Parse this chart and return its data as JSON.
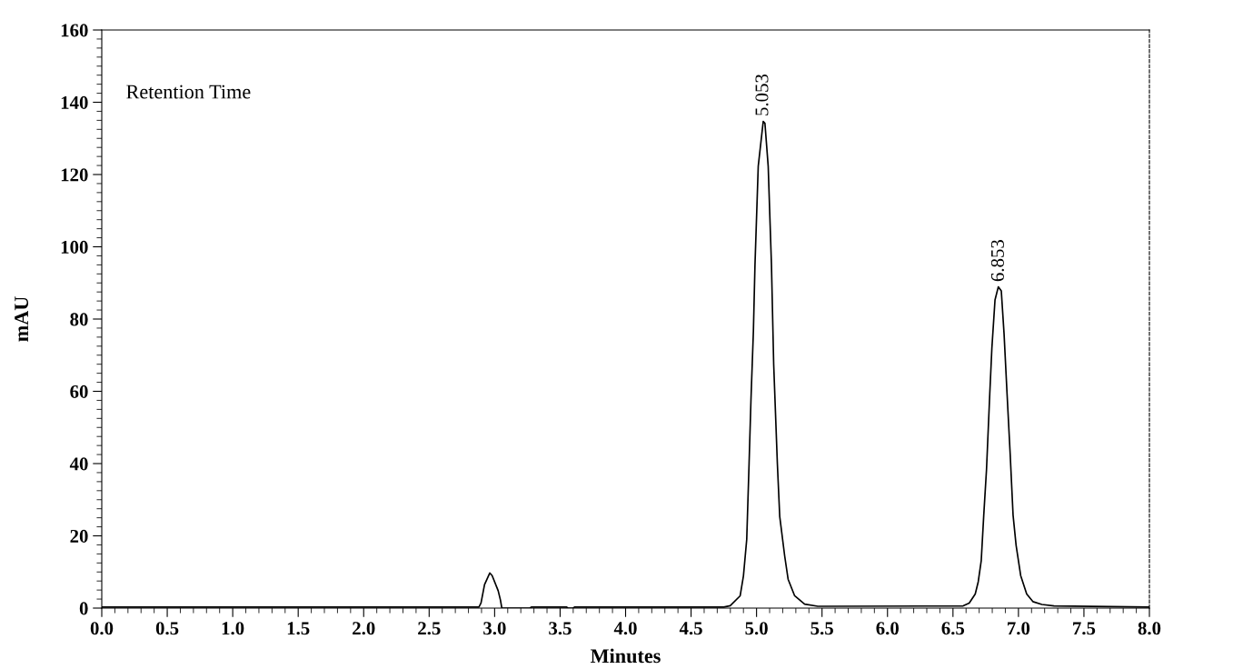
{
  "chart_data": {
    "type": "line",
    "xlabel": "Minutes",
    "ylabel": "mAU",
    "annotations": [
      "Retention Time",
      {
        "text": "5.053",
        "x": 5.053,
        "y": 134.7
      },
      {
        "text": "6.853",
        "x": 6.853,
        "y": 88.9
      }
    ],
    "series": [
      {
        "color": "#000000",
        "x": [
          0.0,
          2.88,
          2.896,
          2.923,
          2.963,
          2.981,
          3.027,
          3.044,
          3.055,
          3.27,
          3.28,
          3.55,
          3.56,
          3.6,
          3.61,
          4.75,
          4.799,
          4.875,
          4.9,
          4.925,
          4.943,
          4.958,
          4.976,
          4.988,
          5.013,
          5.051,
          5.064,
          5.089,
          5.114,
          5.131,
          5.159,
          5.177,
          5.215,
          5.241,
          5.291,
          5.367,
          5.468,
          6.578,
          6.624,
          6.67,
          6.693,
          6.716,
          6.735,
          6.756,
          6.781,
          6.797,
          6.821,
          6.846,
          6.869,
          6.89,
          6.913,
          6.937,
          6.959,
          6.982,
          7.017,
          7.063,
          7.11,
          7.179,
          7.272,
          8.0
        ],
        "values": [
          0.3,
          0.3,
          1.4,
          6.5,
          9.7,
          9.0,
          4.8,
          2.3,
          0.0,
          0.0,
          0.3,
          0.3,
          0.0,
          0.0,
          0.3,
          0.3,
          0.65,
          3.4,
          8.9,
          19,
          40,
          58.3,
          76.6,
          94.9,
          122.3,
          134.7,
          134.2,
          122.3,
          94.9,
          67.4,
          40,
          25.4,
          14.4,
          8,
          3.4,
          1.1,
          0.5,
          0.6,
          1.4,
          3.9,
          7.3,
          13.2,
          25.7,
          38.3,
          59.3,
          71.9,
          85.3,
          88.9,
          87.8,
          76,
          59.3,
          42.5,
          25.7,
          17.4,
          9,
          3.9,
          1.8,
          1,
          0.6,
          0.3
        ]
      }
    ],
    "xlim": [
      0,
      8
    ],
    "xticks": [
      {
        "value": 0,
        "label": "0.0"
      },
      0.5,
      {
        "value": 1,
        "label": "1.0"
      },
      1.5,
      {
        "value": 2,
        "label": "2.0"
      },
      2.5,
      {
        "value": 3,
        "label": "3.0"
      },
      3.5,
      {
        "value": 4,
        "label": "4.0"
      },
      4.5,
      {
        "value": 5,
        "label": "5.0"
      },
      5.5,
      {
        "value": 6,
        "label": "6.0"
      },
      6.5,
      {
        "value": 7,
        "label": "7.0"
      },
      7.5,
      {
        "value": 8,
        "label": "8.0"
      }
    ],
    "ylim": [
      0,
      160
    ],
    "yticks": [
      0,
      20,
      40,
      60,
      80,
      100,
      120,
      140,
      160
    ],
    "grid": false,
    "marker": "none",
    "line_style": "solid"
  }
}
